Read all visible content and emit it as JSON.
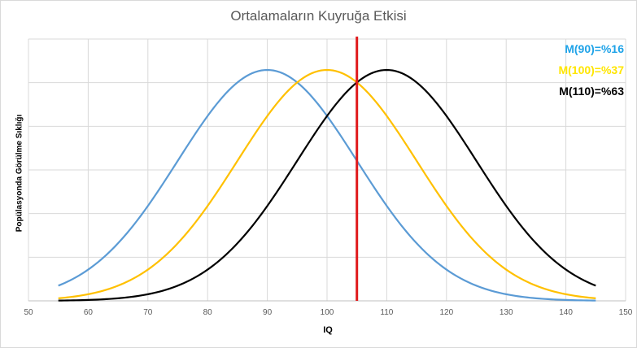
{
  "chart_data": {
    "type": "line",
    "title": "Ortalamaların Kuyruğa Etkisi",
    "xlabel": "IQ",
    "ylabel": "Popülasyonda  Görülme Sıklığı",
    "xlim": [
      50,
      150
    ],
    "x_ticks": [
      "50",
      "60",
      "70",
      "80",
      "90",
      "100",
      "110",
      "120",
      "130",
      "140",
      "150"
    ],
    "y_tick_labels": "hidden",
    "grid": "both",
    "x_range": [
      55,
      145
    ],
    "series": [
      {
        "name": "M(90)=%16",
        "mean": 90,
        "sd": 15,
        "color": "#5B9BD5"
      },
      {
        "name": "M(100)=%37",
        "mean": 100,
        "sd": 15,
        "color": "#FFC000"
      },
      {
        "name": "M(110)=%63",
        "mean": 110,
        "sd": 15,
        "color": "#000000"
      }
    ],
    "vertical_line": {
      "x": 105,
      "color": "#E0191B"
    },
    "legend_position": "top-right"
  }
}
